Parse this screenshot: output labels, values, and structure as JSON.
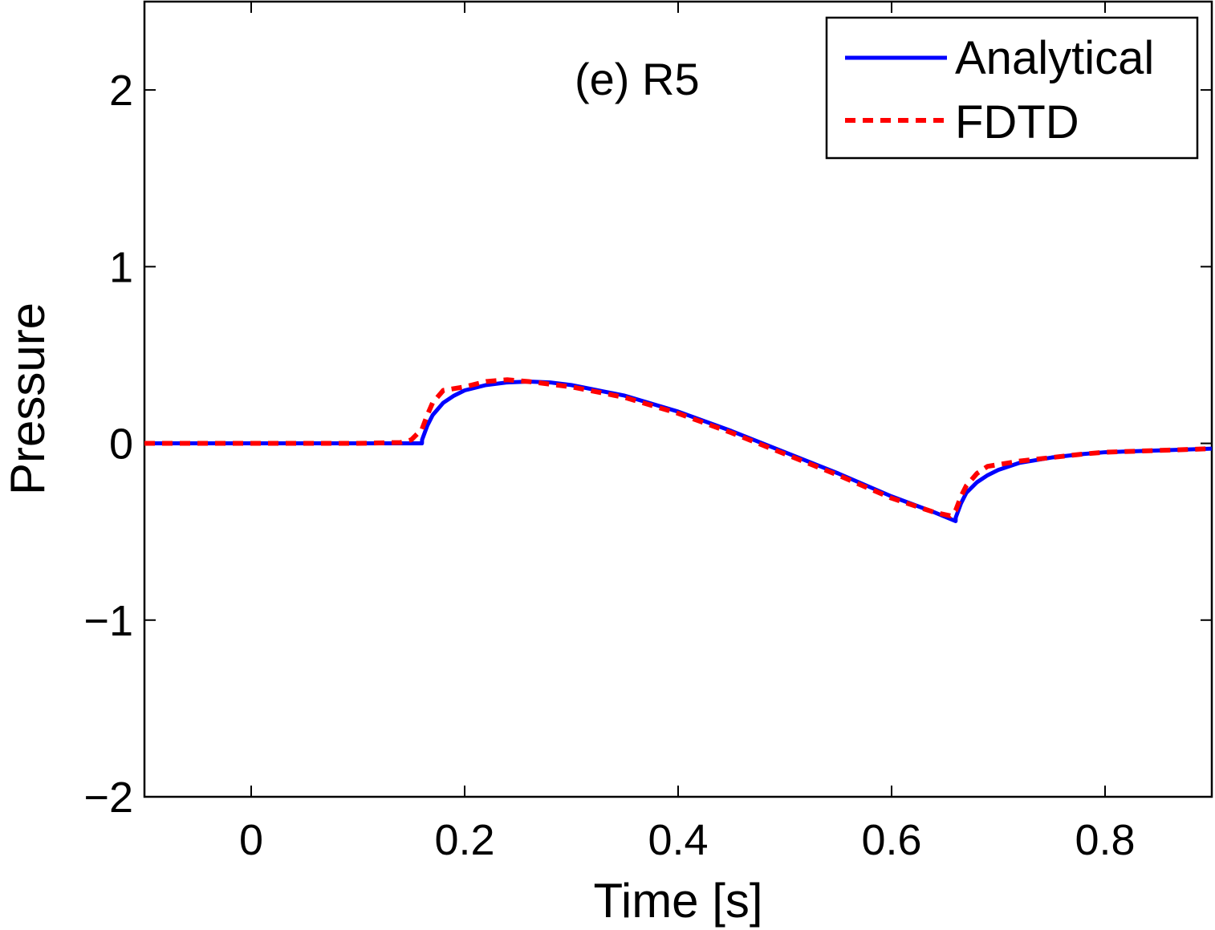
{
  "chart_data": {
    "type": "line",
    "title": "(e) R5",
    "xlabel": "Time [s]",
    "ylabel": "Pressure",
    "xlim": [
      -0.1,
      0.9
    ],
    "ylim": [
      -2,
      2.5
    ],
    "xticks": [
      0,
      0.2,
      0.4,
      0.6,
      0.8
    ],
    "xtick_labels": [
      "0",
      "0.2",
      "0.4",
      "0.6",
      "0.8"
    ],
    "yticks": [
      -2,
      -1,
      0,
      1,
      2
    ],
    "ytick_labels": [
      "−2",
      "−1",
      "0",
      "1",
      "2"
    ],
    "grid": false,
    "legend_position": "top-right",
    "series": [
      {
        "name": "Analytical",
        "color": "#0000ff",
        "style": "solid",
        "x": [
          -0.1,
          0.0,
          0.1,
          0.16,
          0.1601,
          0.165,
          0.17,
          0.18,
          0.19,
          0.2,
          0.22,
          0.24,
          0.26,
          0.28,
          0.3,
          0.35,
          0.4,
          0.45,
          0.5,
          0.55,
          0.6,
          0.64,
          0.66,
          0.6601,
          0.665,
          0.67,
          0.68,
          0.69,
          0.7,
          0.72,
          0.75,
          0.78,
          0.8,
          0.85,
          0.9
        ],
        "y": [
          0,
          0,
          0,
          0,
          0.02,
          0.1,
          0.16,
          0.23,
          0.27,
          0.3,
          0.33,
          0.345,
          0.35,
          0.345,
          0.33,
          0.27,
          0.18,
          0.07,
          -0.05,
          -0.17,
          -0.3,
          -0.39,
          -0.44,
          -0.42,
          -0.34,
          -0.28,
          -0.22,
          -0.18,
          -0.15,
          -0.11,
          -0.08,
          -0.06,
          -0.05,
          -0.04,
          -0.03
        ]
      },
      {
        "name": "FDTD",
        "color": "#ff0000",
        "style": "dashed",
        "x": [
          -0.1,
          0.0,
          0.1,
          0.14,
          0.15,
          0.16,
          0.165,
          0.17,
          0.18,
          0.19,
          0.2,
          0.22,
          0.24,
          0.26,
          0.28,
          0.3,
          0.35,
          0.4,
          0.45,
          0.5,
          0.55,
          0.6,
          0.64,
          0.655,
          0.66,
          0.665,
          0.67,
          0.68,
          0.69,
          0.7,
          0.72,
          0.75,
          0.78,
          0.8,
          0.85,
          0.9
        ],
        "y": [
          0,
          0,
          0,
          0.005,
          0.02,
          0.08,
          0.16,
          0.23,
          0.3,
          0.31,
          0.32,
          0.35,
          0.36,
          0.35,
          0.335,
          0.32,
          0.26,
          0.17,
          0.06,
          -0.06,
          -0.18,
          -0.31,
          -0.39,
          -0.41,
          -0.38,
          -0.3,
          -0.24,
          -0.17,
          -0.13,
          -0.12,
          -0.1,
          -0.08,
          -0.06,
          -0.05,
          -0.04,
          -0.03
        ]
      }
    ]
  }
}
